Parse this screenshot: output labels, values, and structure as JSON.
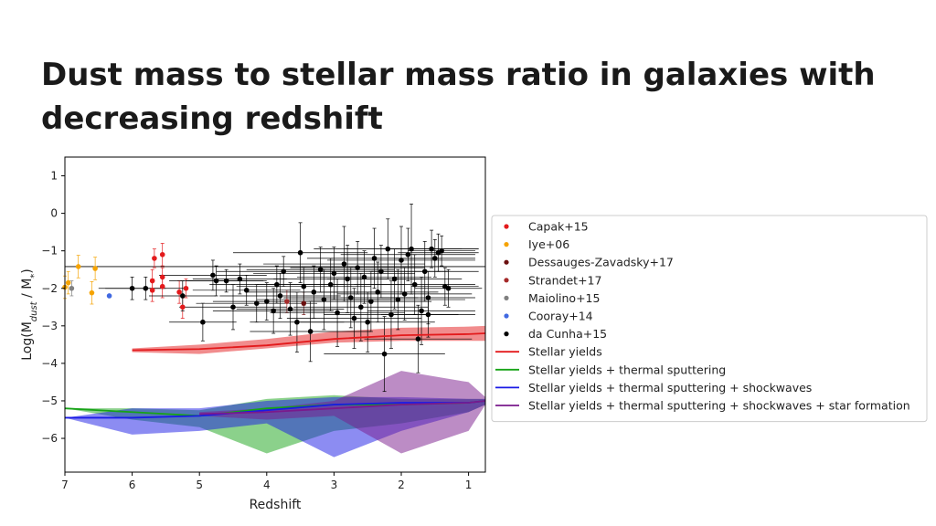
{
  "slide": {
    "title_line1": "Dust mass to stellar mass ratio in galaxies with",
    "title_line2": "decreasing redshift"
  },
  "chart_data": {
    "type": "scatter",
    "xlabel": "Redshift",
    "ylabel": "Log(M",
    "ylabel_sub1": "dust",
    "ylabel_mid": " / M",
    "ylabel_sub2": "*",
    "ylabel_end": ")",
    "xlim": [
      7,
      0.75
    ],
    "ylim": [
      -6.9,
      1.5
    ],
    "xticks": [
      7,
      6,
      5,
      4,
      3,
      2,
      1
    ],
    "yticks": [
      1,
      0,
      -1,
      -2,
      -3,
      -4,
      -5,
      -6
    ],
    "grid": false,
    "legend_position": "right",
    "reference_line_y": -1.42,
    "observations": [
      {
        "name": "Capak+15",
        "color": "#e31a1c",
        "points": [
          {
            "x": 5.67,
            "y": -1.2,
            "ey": 0.25
          },
          {
            "x": 5.55,
            "y": -1.1,
            "ey": 0.3
          },
          {
            "x": 5.7,
            "y": -1.8,
            "ey": 0.3
          },
          {
            "x": 5.55,
            "y": -1.7,
            "ey": 0.25
          },
          {
            "x": 5.55,
            "y": -1.95,
            "ey": 0.3
          },
          {
            "x": 5.7,
            "y": -2.05,
            "ey": 0.3
          },
          {
            "x": 5.3,
            "y": -2.1,
            "ey": 0.3
          },
          {
            "x": 5.2,
            "y": -2.0,
            "ey": 0.25
          },
          {
            "x": 5.25,
            "y": -2.5,
            "ey": 0.3
          }
        ]
      },
      {
        "name": "Iye+06",
        "color": "#f5a300",
        "points": [
          {
            "x": 6.95,
            "y": -1.85,
            "ey": 0.3
          },
          {
            "x": 6.8,
            "y": -1.42,
            "ey": 0.3
          },
          {
            "x": 6.55,
            "y": -1.47,
            "ey": 0.3
          },
          {
            "x": 6.6,
            "y": -2.12,
            "ey": 0.3
          },
          {
            "x": 7.0,
            "y": -1.97,
            "ey": 0.3
          }
        ]
      },
      {
        "name": "Dessauges-Zavadsky+17",
        "color": "#6b0f0f",
        "points": [
          {
            "x": 3.45,
            "y": -2.4,
            "ey": 0.3
          }
        ]
      },
      {
        "name": "Strandet+17",
        "color": "#a52a2a",
        "points": [
          {
            "x": 3.7,
            "y": -2.35,
            "ey": 0.3
          }
        ]
      },
      {
        "name": "Maiolino+15",
        "color": "#808080",
        "points": [
          {
            "x": 6.9,
            "y": -2.0,
            "ey": 0.2
          }
        ]
      },
      {
        "name": "Cooray+14",
        "color": "#4169e1",
        "points": [
          {
            "x": 6.34,
            "y": -2.2,
            "ey": 0.0
          }
        ]
      },
      {
        "name": "da Cunha+15",
        "color": "#000000",
        "points": [
          {
            "x": 6.0,
            "y": -2.0,
            "ex": 0.5,
            "ey": 0.3
          },
          {
            "x": 5.8,
            "y": -2.0,
            "ex": 0.6,
            "ey": 0.3
          },
          {
            "x": 5.25,
            "y": -2.2,
            "ex": 0.5,
            "ey": 0.4
          },
          {
            "x": 4.95,
            "y": -2.9,
            "ex": 0.5,
            "ey": 0.5
          },
          {
            "x": 4.75,
            "y": -1.8,
            "ex": 0.7,
            "ey": 0.4
          },
          {
            "x": 4.8,
            "y": -1.65,
            "ex": 0.8,
            "ey": 0.4
          },
          {
            "x": 4.6,
            "y": -1.8,
            "ex": 0.6,
            "ey": 0.3
          },
          {
            "x": 4.4,
            "y": -1.75,
            "ex": 0.7,
            "ey": 0.4
          },
          {
            "x": 4.3,
            "y": -2.05,
            "ex": 0.8,
            "ey": 0.4
          },
          {
            "x": 4.15,
            "y": -2.4,
            "ex": 0.9,
            "ey": 0.5
          },
          {
            "x": 4.0,
            "y": -2.35,
            "ex": 0.8,
            "ey": 0.5
          },
          {
            "x": 3.85,
            "y": -1.9,
            "ex": 1.0,
            "ey": 0.5
          },
          {
            "x": 3.8,
            "y": -2.2,
            "ex": 0.9,
            "ey": 0.6
          },
          {
            "x": 3.75,
            "y": -1.55,
            "ex": 1.0,
            "ey": 0.4
          },
          {
            "x": 3.65,
            "y": -2.55,
            "ex": 0.8,
            "ey": 0.7
          },
          {
            "x": 3.55,
            "y": -2.9,
            "ex": 0.7,
            "ey": 0.8
          },
          {
            "x": 3.5,
            "y": -1.05,
            "ex": 1.0,
            "ey": 0.8
          },
          {
            "x": 3.45,
            "y": -1.95,
            "ex": 1.0,
            "ey": 0.5
          },
          {
            "x": 3.35,
            "y": -3.15,
            "ex": 0.9,
            "ey": 0.8
          },
          {
            "x": 3.3,
            "y": -2.1,
            "ex": 1.0,
            "ey": 0.7
          },
          {
            "x": 3.2,
            "y": -1.5,
            "ex": 1.1,
            "ey": 0.6
          },
          {
            "x": 3.15,
            "y": -2.3,
            "ex": 1.0,
            "ey": 0.8
          },
          {
            "x": 3.05,
            "y": -1.9,
            "ex": 1.1,
            "ey": 0.7
          },
          {
            "x": 3.0,
            "y": -1.6,
            "ex": 1.2,
            "ey": 0.7
          },
          {
            "x": 2.95,
            "y": -2.65,
            "ex": 1.0,
            "ey": 0.9
          },
          {
            "x": 2.85,
            "y": -1.35,
            "ex": 1.2,
            "ey": 1.0
          },
          {
            "x": 2.8,
            "y": -1.75,
            "ex": 1.1,
            "ey": 0.9
          },
          {
            "x": 2.75,
            "y": -2.25,
            "ex": 1.0,
            "ey": 0.8
          },
          {
            "x": 2.65,
            "y": -1.45,
            "ex": 1.0,
            "ey": 0.7
          },
          {
            "x": 2.6,
            "y": -2.5,
            "ex": 1.0,
            "ey": 0.9
          },
          {
            "x": 2.55,
            "y": -1.7,
            "ex": 1.0,
            "ey": 0.7
          },
          {
            "x": 2.45,
            "y": -2.35,
            "ex": 0.9,
            "ey": 0.8
          },
          {
            "x": 2.4,
            "y": -1.2,
            "ex": 1.0,
            "ey": 0.8
          },
          {
            "x": 2.35,
            "y": -2.1,
            "ex": 0.9,
            "ey": 0.8
          },
          {
            "x": 2.3,
            "y": -1.55,
            "ex": 1.0,
            "ey": 0.7
          },
          {
            "x": 2.25,
            "y": -3.75,
            "ex": 0.9,
            "ey": 1.0
          },
          {
            "x": 2.2,
            "y": -0.95,
            "ex": 1.1,
            "ey": 0.8
          },
          {
            "x": 2.15,
            "y": -2.7,
            "ex": 1.0,
            "ey": 0.9
          },
          {
            "x": 2.1,
            "y": -1.75,
            "ex": 1.0,
            "ey": 0.8
          },
          {
            "x": 2.05,
            "y": -2.3,
            "ex": 1.0,
            "ey": 0.8
          },
          {
            "x": 2.0,
            "y": -1.25,
            "ex": 1.1,
            "ey": 0.9
          },
          {
            "x": 1.95,
            "y": -2.15,
            "ex": 1.0,
            "ey": 0.7
          },
          {
            "x": 1.9,
            "y": -1.1,
            "ex": 1.0,
            "ey": 0.7
          },
          {
            "x": 1.85,
            "y": -0.95,
            "ex": 1.0,
            "ey": 1.2
          },
          {
            "x": 1.8,
            "y": -1.9,
            "ex": 0.9,
            "ey": 0.8
          },
          {
            "x": 1.75,
            "y": -3.35,
            "ex": 0.8,
            "ey": 0.9
          },
          {
            "x": 1.7,
            "y": -2.6,
            "ex": 0.8,
            "ey": 0.9
          },
          {
            "x": 1.65,
            "y": -1.55,
            "ex": 0.8,
            "ey": 0.8
          },
          {
            "x": 1.6,
            "y": -2.25,
            "ex": 0.7,
            "ey": 0.7
          },
          {
            "x": 1.55,
            "y": -0.95,
            "ex": 0.7,
            "ey": 0.5
          },
          {
            "x": 1.5,
            "y": -1.2,
            "ex": 0.6,
            "ey": 0.5
          },
          {
            "x": 1.45,
            "y": -1.05,
            "ex": 0.6,
            "ey": 0.5
          },
          {
            "x": 1.4,
            "y": -1.0,
            "ex": 0.5,
            "ey": 0.4
          },
          {
            "x": 1.35,
            "y": -1.95,
            "ex": 0.5,
            "ey": 0.5
          },
          {
            "x": 1.3,
            "y": -2.0,
            "ex": 0.5,
            "ey": 0.5
          },
          {
            "x": 2.7,
            "y": -2.8,
            "ex": 1.0,
            "ey": 0.8
          },
          {
            "x": 3.9,
            "y": -2.6,
            "ex": 0.9,
            "ey": 0.6
          },
          {
            "x": 4.5,
            "y": -2.5,
            "ex": 0.8,
            "ey": 0.6
          },
          {
            "x": 1.6,
            "y": -2.7,
            "ex": 0.7,
            "ey": 0.6
          },
          {
            "x": 2.5,
            "y": -2.9,
            "ex": 1.0,
            "ey": 0.8
          }
        ]
      }
    ],
    "models": [
      {
        "name": "Stellar yields",
        "color": "#e31a1c",
        "x": [
          6.0,
          5.0,
          4.0,
          3.0,
          2.0,
          1.0,
          0.75
        ],
        "y": [
          -3.65,
          -3.62,
          -3.52,
          -3.35,
          -3.25,
          -3.22,
          -3.2
        ],
        "band_upper": [
          -3.6,
          -3.5,
          -3.35,
          -3.15,
          -3.05,
          -3.02,
          -3.0
        ],
        "band_lower": [
          -3.7,
          -3.75,
          -3.6,
          -3.45,
          -3.4,
          -3.4,
          -3.4
        ]
      },
      {
        "name": "Stellar yields + thermal sputtering",
        "color": "#17a317",
        "x": [
          7.0,
          6.0,
          5.0,
          4.0,
          3.0,
          2.0,
          1.0,
          0.75
        ],
        "y": [
          -5.2,
          -5.3,
          -5.4,
          -5.2,
          -5.1,
          -5.1,
          -5.05,
          -5.0
        ],
        "band_upper": [
          -5.2,
          -5.2,
          -5.25,
          -4.95,
          -4.85,
          -4.95,
          -4.95,
          -4.95
        ],
        "band_lower": [
          -5.2,
          -5.5,
          -5.7,
          -6.4,
          -5.8,
          -5.6,
          -5.3,
          -5.1
        ]
      },
      {
        "name": "Stellar yields + thermal sputtering + shockwaves",
        "color": "#1a1ae6",
        "x": [
          7.0,
          6.0,
          5.0,
          4.0,
          3.0,
          2.0,
          1.0,
          0.75
        ],
        "y": [
          -5.45,
          -5.45,
          -5.4,
          -5.25,
          -5.1,
          -5.05,
          -5.05,
          -5.0
        ],
        "band_upper": [
          -5.45,
          -5.2,
          -5.2,
          -5.0,
          -4.9,
          -4.9,
          -4.95,
          -4.95
        ],
        "band_lower": [
          -5.45,
          -5.9,
          -5.8,
          -5.6,
          -6.5,
          -5.8,
          -5.3,
          -5.1
        ]
      },
      {
        "name": "Stellar yields + thermal sputtering + shockwaves + star formation",
        "color": "#7a1a8c",
        "x": [
          5.0,
          4.0,
          3.0,
          2.0,
          1.0,
          0.75
        ],
        "y": [
          -5.35,
          -5.3,
          -5.2,
          -5.1,
          -5.05,
          -5.0
        ],
        "band_upper": [
          -5.3,
          -5.2,
          -5.0,
          -4.2,
          -4.5,
          -4.9
        ],
        "band_lower": [
          -5.4,
          -5.5,
          -5.4,
          -6.4,
          -5.8,
          -5.1
        ]
      }
    ]
  }
}
